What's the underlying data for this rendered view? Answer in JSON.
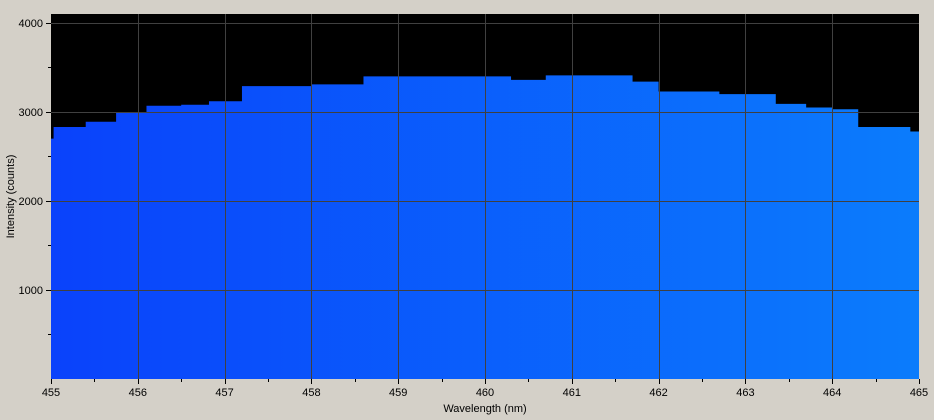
{
  "chart_data": {
    "type": "area",
    "xlabel": "Wavelength (nm)",
    "ylabel": "Intensity (counts)",
    "xlim": [
      455,
      465
    ],
    "ylim": [
      0,
      4100
    ],
    "x_ticks": [
      455,
      456,
      457,
      458,
      459,
      460,
      461,
      462,
      463,
      464,
      465
    ],
    "y_ticks": [
      1000,
      2000,
      3000,
      4000
    ],
    "x_tick_labels": [
      "455",
      "456",
      "457",
      "458",
      "459",
      "460",
      "461",
      "462",
      "463",
      "464",
      "465"
    ],
    "y_tick_labels": [
      "1000",
      "2000",
      "3000",
      "4000"
    ],
    "grid": true,
    "series": [
      {
        "x": [
          455.0,
          455.03,
          455.4,
          455.75,
          456.1,
          456.5,
          456.82,
          457.0,
          457.2,
          457.5,
          458.0,
          458.2,
          458.6,
          459.0,
          459.5,
          460.0,
          460.25,
          460.3,
          460.7,
          461.0,
          461.35,
          461.7,
          462.0,
          462.35,
          462.7,
          463.0,
          463.35,
          463.7,
          464.0,
          464.3,
          464.55,
          464.9,
          465.0
        ],
        "values": [
          2700,
          2830,
          2890,
          2990,
          3070,
          3080,
          3120,
          3120,
          3290,
          3290,
          3310,
          3310,
          3400,
          3400,
          3400,
          3400,
          3400,
          3360,
          3410,
          3410,
          3410,
          3340,
          3230,
          3230,
          3200,
          3200,
          3090,
          3050,
          3030,
          2830,
          2830,
          2780,
          2710
        ]
      }
    ],
    "colors": {
      "background": "#000000",
      "grid": "#404040",
      "fill_left": "#0a42fb",
      "fill_right": "#0b7cfc",
      "frame": "#d4d0c8"
    }
  }
}
